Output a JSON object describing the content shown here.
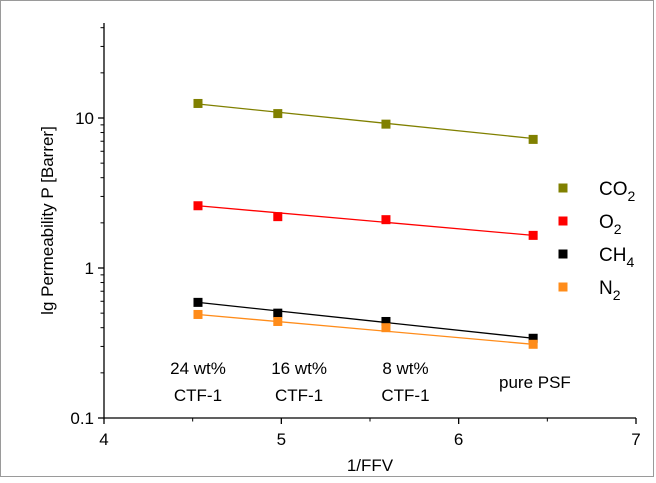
{
  "chart_data": {
    "type": "scatter",
    "xlabel": "1/FFV",
    "ylabel": "lg Permeability P [Barrer]",
    "xlim": [
      4,
      7
    ],
    "ylim": [
      0.1,
      40
    ],
    "yscale": "log",
    "x_ticks": [
      "4",
      "5",
      "6",
      "7"
    ],
    "y_ticks": [
      "0.1",
      "1",
      "10"
    ],
    "legend_position": "right",
    "grid": false,
    "series": [
      {
        "name": "CO2",
        "name_base": "CO",
        "name_sub": "2",
        "color": "#808000",
        "x": [
          4.53,
          4.98,
          5.59,
          6.42
        ],
        "y": [
          12.5,
          10.7,
          9.1,
          7.2
        ],
        "fit": [
          [
            4.53,
            12.4
          ],
          [
            6.42,
            7.3
          ]
        ]
      },
      {
        "name": "O2",
        "name_base": "O",
        "name_sub": "2",
        "color": "#ff0000",
        "x": [
          4.53,
          4.98,
          5.59,
          6.42
        ],
        "y": [
          2.6,
          2.2,
          2.1,
          1.65
        ],
        "fit": [
          [
            4.53,
            2.6
          ],
          [
            6.42,
            1.65
          ]
        ]
      },
      {
        "name": "CH4",
        "name_base": "CH",
        "name_sub": "4",
        "color": "#000000",
        "x": [
          4.53,
          4.98,
          5.59,
          6.42
        ],
        "y": [
          0.59,
          0.5,
          0.44,
          0.34
        ],
        "fit": [
          [
            4.53,
            0.59
          ],
          [
            6.42,
            0.34
          ]
        ]
      },
      {
        "name": "N2",
        "name_base": "N",
        "name_sub": "2",
        "color": "#ff8c1a",
        "x": [
          4.53,
          4.98,
          5.59,
          6.42
        ],
        "y": [
          0.49,
          0.44,
          0.4,
          0.31
        ],
        "fit": [
          [
            4.53,
            0.49
          ],
          [
            6.42,
            0.31
          ]
        ]
      }
    ],
    "annotations": [
      {
        "x": 4.53,
        "lines": [
          "24 wt%",
          "CTF-1"
        ]
      },
      {
        "x": 5.1,
        "lines": [
          "16 wt%",
          "CTF-1"
        ]
      },
      {
        "x": 5.7,
        "lines": [
          "8 wt%",
          "CTF-1"
        ]
      },
      {
        "x": 6.43,
        "lines": [
          "pure PSF"
        ]
      }
    ]
  }
}
